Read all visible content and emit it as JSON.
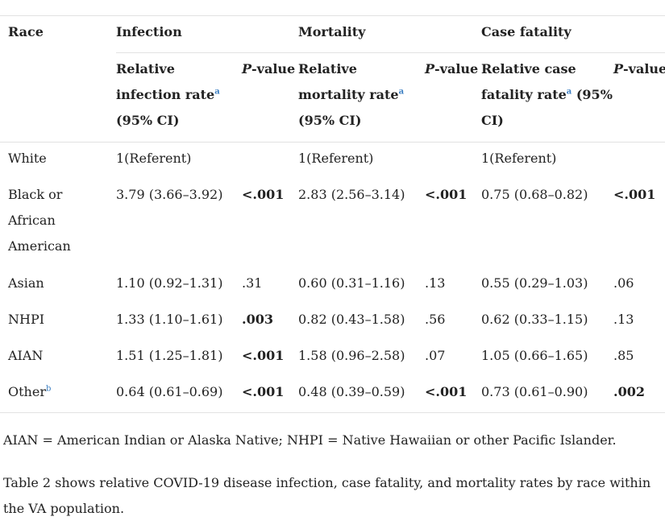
{
  "table": {
    "headers": {
      "race": "Race",
      "infection": "Infection",
      "mortality": "Mortality",
      "case_fatality": "Case fatality"
    },
    "subheaders": {
      "infection_rate": "Relative infection rate",
      "infection_rate_ci": " (95% CI)",
      "mortality_rate": "Relative mortality rate",
      "mortality_rate_ci": " (95% CI)",
      "case_rate_line1": "Relative case",
      "case_rate_line2": "fatality rate",
      "case_rate_ci": " (95%",
      "case_rate_line3": "CI)",
      "p_italic": "P",
      "p_rest": "-value",
      "footnote_a": "a"
    },
    "rows": [
      {
        "race": "White",
        "inf": "1(Referent)",
        "inf_p": "",
        "mort": "1(Referent)",
        "mort_p": "",
        "cf": "1(Referent)",
        "cf_p": ""
      },
      {
        "race_l1": "Black or",
        "race_l2": "African",
        "race_l3": "American",
        "inf": "3.79 (3.66–3.92)",
        "inf_p": "<.001",
        "mort": "2.83 (2.56–3.14)",
        "mort_p": "<.001",
        "cf": "0.75 (0.68–0.82)",
        "cf_p": "<.001"
      },
      {
        "race": "Asian",
        "inf": "1.10 (0.92–1.31)",
        "inf_p": ".31",
        "mort": "0.60 (0.31–1.16)",
        "mort_p": ".13",
        "cf": "0.55 (0.29–1.03)",
        "cf_p": ".06"
      },
      {
        "race": "NHPI",
        "inf": "1.33 (1.10–1.61)",
        "inf_p": ".003",
        "mort": "0.82 (0.43–1.58)",
        "mort_p": ".56",
        "cf": "0.62 (0.33–1.15)",
        "cf_p": ".13"
      },
      {
        "race": "AIAN",
        "inf": "1.51 (1.25–1.81)",
        "inf_p": "<.001",
        "mort": "1.58 (0.96–2.58)",
        "mort_p": ".07",
        "cf": "1.05 (0.66–1.65)",
        "cf_p": ".85"
      },
      {
        "race": "Other",
        "race_sup": "b",
        "inf": "0.64 (0.61–0.69)",
        "inf_p": "<.001",
        "mort": "0.48 (0.39–0.59)",
        "mort_p": "<.001",
        "cf": "0.73 (0.61–0.90)",
        "cf_p": ".002"
      }
    ]
  },
  "footnote": "AIAN = American Indian or Alaska Native; NHPI = Native Hawaiian or other Pacific Islander.",
  "paragraph": "Table 2 shows relative COVID-19 disease infection, case fatality, and mortality rates by race within the VA population.",
  "colors": {
    "text": "#222222",
    "rule": "#e2e2e2",
    "superscript_link": "#3c7fc2"
  }
}
